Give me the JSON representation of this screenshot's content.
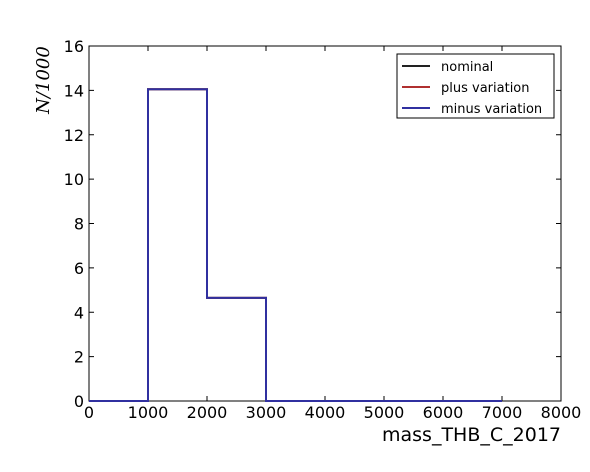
{
  "chart_data": {
    "type": "line",
    "drawstyle": "steps",
    "title": "",
    "xlabel": "mass_THB_C_2017",
    "ylabel": "N/1000",
    "xlim": [
      0,
      8000
    ],
    "ylim": [
      0,
      16
    ],
    "x_ticks": [
      0,
      1000,
      2000,
      3000,
      4000,
      5000,
      6000,
      7000,
      8000
    ],
    "y_ticks": [
      0,
      2,
      4,
      6,
      8,
      10,
      12,
      14,
      16
    ],
    "x_tick_labels": [
      "0",
      "1000",
      "2000",
      "3000",
      "4000",
      "5000",
      "6000",
      "7000",
      "8000"
    ],
    "y_tick_labels": [
      "0",
      "2",
      "4",
      "6",
      "8",
      "10",
      "12",
      "14",
      "16"
    ],
    "bin_edges": [
      0,
      1000,
      2000,
      3000,
      4000,
      5000,
      6000,
      7000
    ],
    "grid": false,
    "legend_position": "top-right",
    "series": [
      {
        "name": "nominal",
        "color": "#222222",
        "values": [
          0,
          14.05,
          4.65,
          0,
          0,
          0,
          0
        ]
      },
      {
        "name": "plus variation",
        "color": "#b03030",
        "values": [
          0,
          14.05,
          4.65,
          0,
          0,
          0,
          0
        ]
      },
      {
        "name": "minus variation",
        "color": "#3030a0",
        "values": [
          0,
          14.05,
          4.65,
          0,
          0,
          0,
          0
        ]
      }
    ]
  }
}
